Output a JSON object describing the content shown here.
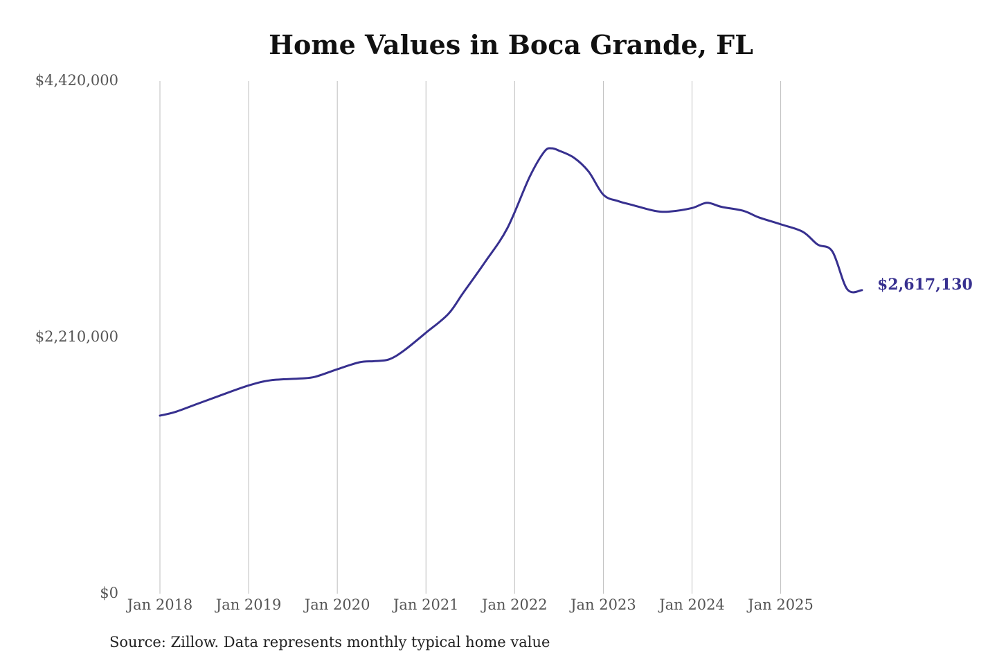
{
  "colors": {
    "line": "#37308f",
    "grid": "#bdbdbd",
    "text": "#555555",
    "title": "#111111"
  },
  "source_note": "Source: Zillow. Data represents monthly typical home value",
  "chart_data": {
    "type": "line",
    "title": "Home Values in Boca Grande, FL",
    "xlabel": "",
    "ylabel": "",
    "ylim": [
      0,
      4420000
    ],
    "xlim": [
      "2018-01",
      "2025-12"
    ],
    "y_ticks": [
      {
        "value": 0,
        "label": "$0"
      },
      {
        "value": 2210000,
        "label": "$2,210,000"
      },
      {
        "value": 4420000,
        "label": "$4,420,000"
      }
    ],
    "x_ticks": [
      {
        "x": "2018-01",
        "label": "Jan 2018"
      },
      {
        "x": "2019-01",
        "label": "Jan 2019"
      },
      {
        "x": "2020-01",
        "label": "Jan 2020"
      },
      {
        "x": "2021-01",
        "label": "Jan 2021"
      },
      {
        "x": "2022-01",
        "label": "Jan 2022"
      },
      {
        "x": "2023-01",
        "label": "Jan 2023"
      },
      {
        "x": "2024-01",
        "label": "Jan 2024"
      },
      {
        "x": "2025-01",
        "label": "Jan 2025"
      }
    ],
    "grid": {
      "vertical": true,
      "horizontal": false
    },
    "end_label": "$2,617,130",
    "series": [
      {
        "x": [
          "2018-01",
          "2018-03",
          "2018-06",
          "2018-09",
          "2019-01",
          "2019-04",
          "2019-08",
          "2019-10",
          "2020-01",
          "2020-04",
          "2020-06",
          "2020-08",
          "2020-10",
          "2021-01",
          "2021-04",
          "2021-06",
          "2021-09",
          "2021-12",
          "2022-03",
          "2022-05",
          "2022-06",
          "2022-07",
          "2022-09",
          "2022-11",
          "2023-01",
          "2023-03",
          "2023-05",
          "2023-08",
          "2023-10",
          "2024-01",
          "2024-03",
          "2024-05",
          "2024-08",
          "2024-10",
          "2025-01",
          "2025-04",
          "2025-06",
          "2025-08",
          "2025-10",
          "2025-12"
        ],
        "y": [
          1535000,
          1565000,
          1635000,
          1705000,
          1795000,
          1840000,
          1855000,
          1870000,
          1935000,
          1995000,
          2005000,
          2020000,
          2095000,
          2250000,
          2410000,
          2590000,
          2860000,
          3150000,
          3590000,
          3810000,
          3840000,
          3820000,
          3760000,
          3640000,
          3440000,
          3385000,
          3350000,
          3300000,
          3295000,
          3325000,
          3370000,
          3335000,
          3300000,
          3245000,
          3185000,
          3120000,
          3010000,
          2950000,
          2625000,
          2617130
        ]
      }
    ]
  }
}
